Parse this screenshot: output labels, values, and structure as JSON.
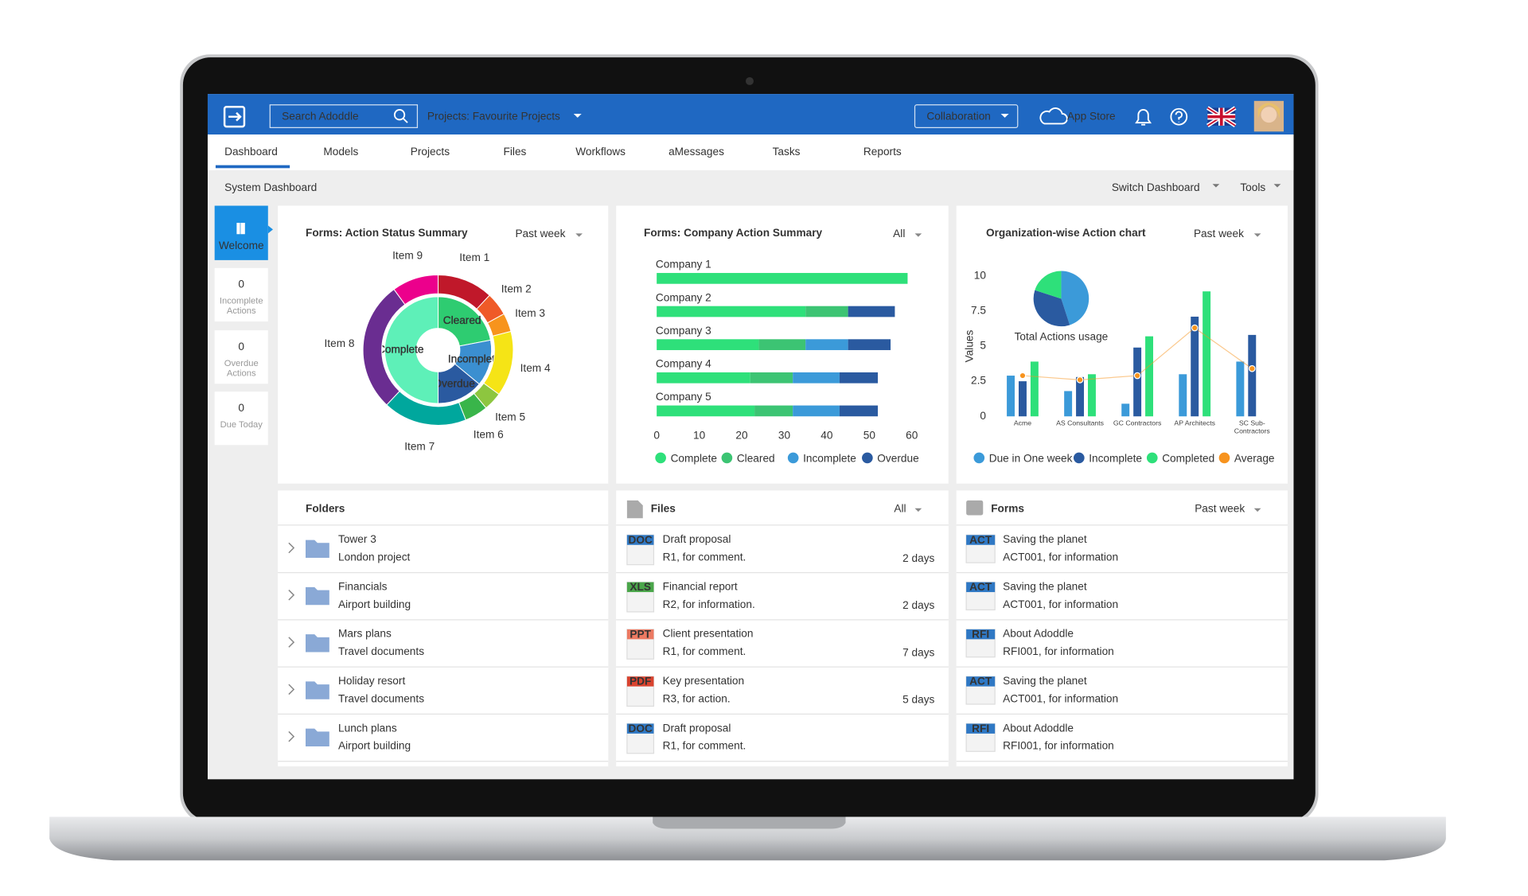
{
  "header": {
    "search_placeholder": "Search Adoddle",
    "projects": "Projects: Favourite Projects",
    "collaboration": "Collaboration",
    "app_store": "App Store"
  },
  "nav": [
    "Dashboard",
    "Models",
    "Projects",
    "Files",
    "Workflows",
    "aMessages",
    "Tasks",
    "Reports"
  ],
  "toolbar": {
    "title": "System Dashboard",
    "switch_dashboard": "Switch Dashboard",
    "tools": "Tools"
  },
  "sidebar": {
    "welcome": "Welcome",
    "stats": [
      {
        "value": 0,
        "label": "Incomplete Actions"
      },
      {
        "value": 0,
        "label": "Overdue Actions"
      },
      {
        "value": 0,
        "label": "Due Today"
      }
    ]
  },
  "chart_data": [
    {
      "type": "sunburst",
      "title": "Forms: Action Status Summary",
      "filter": "Past week",
      "inner": {
        "categories": [
          "Cleared",
          "Incomplete",
          "Overdue",
          "Complete"
        ],
        "values": [
          22,
          14,
          14,
          50
        ],
        "colors": [
          "#2ecc71",
          "#3b8fd0",
          "#2a5aa0",
          "#5ef0b8"
        ]
      },
      "outer": {
        "categories": [
          "Item 1",
          "Item 2",
          "Item 3",
          "Item 4",
          "Item 5",
          "Item 6",
          "Item 7",
          "Item 8",
          "Item 9"
        ],
        "values": [
          12,
          5,
          4,
          14,
          4,
          5,
          18,
          28,
          10
        ],
        "colors": [
          "#c0182a",
          "#ef5a28",
          "#f7941d",
          "#f5e416",
          "#8dc63f",
          "#39b54a",
          "#00a79d",
          "#6a2d91",
          "#ec008c"
        ]
      }
    },
    {
      "type": "stacked_bar_horizontal",
      "title": "Forms: Company Action Summary",
      "filter": "All",
      "categories": [
        "Company 1",
        "Company 2",
        "Company 3",
        "Company 4",
        "Company 5"
      ],
      "series": [
        {
          "name": "Complete",
          "color": "#2ee07a",
          "values": [
            59,
            35,
            24,
            22,
            23
          ]
        },
        {
          "name": "Cleared",
          "color": "#3cc473",
          "values": [
            0,
            10,
            11,
            10,
            9
          ]
        },
        {
          "name": "Incomplete",
          "color": "#3b9ad9",
          "values": [
            0,
            0,
            10,
            11,
            11
          ]
        },
        {
          "name": "Overdue",
          "color": "#2a5aa0",
          "values": [
            0,
            11,
            10,
            9,
            9
          ]
        }
      ],
      "xlim": [
        0,
        60
      ],
      "xticks": [
        0,
        10,
        20,
        30,
        40,
        50,
        60
      ]
    },
    {
      "type": "bar_line",
      "title": "Organization-wise Action chart",
      "filter": "Past week",
      "y_label": "Values",
      "categories": [
        "Acme",
        "AS Consultants",
        "GC Contractors",
        "AP Architects",
        "SC Sub-Contractors"
      ],
      "series": [
        {
          "name": "Due in One week",
          "type": "bar",
          "color": "#3b9ad9",
          "values": [
            2.9,
            1.8,
            0.9,
            3.0,
            3.9
          ]
        },
        {
          "name": "Incomplete",
          "type": "bar",
          "color": "#2a5aa0",
          "values": [
            2.5,
            2.8,
            4.9,
            7.1,
            5.8
          ]
        },
        {
          "name": "Completed",
          "type": "bar",
          "color": "#2ee07a",
          "values": [
            3.9,
            3.0,
            5.7,
            8.9,
            null
          ]
        },
        {
          "name": "Average",
          "type": "line",
          "color": "#f7931e",
          "values": [
            2.9,
            2.6,
            2.9,
            6.3,
            3.4
          ]
        }
      ],
      "ylim": [
        0,
        10
      ],
      "yticks": [
        0,
        2.5,
        5,
        7.5,
        10
      ],
      "inset_pie": {
        "title": "Total Actions usage",
        "values": [
          45,
          35,
          20
        ],
        "colors": [
          "#3b9ad9",
          "#2a5aa0",
          "#2ee07a"
        ]
      }
    }
  ],
  "folders": {
    "title": "Folders",
    "items": [
      {
        "name": "Tower 3",
        "detail": "London project"
      },
      {
        "name": "Financials",
        "detail": "Airport building"
      },
      {
        "name": "Mars plans",
        "detail": "Travel documents"
      },
      {
        "name": "Holiday resort",
        "detail": "Travel documents"
      },
      {
        "name": "Lunch plans",
        "detail": "Airport building"
      }
    ]
  },
  "files": {
    "title": "Files",
    "filter": "All",
    "items": [
      {
        "tag": "DOC",
        "name": "Draft proposal",
        "detail": "R1, for comment.",
        "age": "2 days"
      },
      {
        "tag": "XLS",
        "name": "Financial report",
        "detail": "R2, for information.",
        "age": "2 days"
      },
      {
        "tag": "PPT",
        "name": "Client presentation",
        "detail": "R1, for comment.",
        "age": "7 days"
      },
      {
        "tag": "PDF",
        "name": "Key presentation",
        "detail": "R3, for action.",
        "age": "5 days"
      },
      {
        "tag": "DOC",
        "name": "Draft proposal",
        "detail": "R1, for comment."
      }
    ]
  },
  "forms": {
    "title": "Forms",
    "filter": "Past week",
    "items": [
      {
        "tag": "ACT",
        "name": "Saving the planet",
        "detail": "ACT001, for information"
      },
      {
        "tag": "ACT",
        "name": "Saving the planet",
        "detail": "ACT001, for information"
      },
      {
        "tag": "RFI",
        "name": "About Adoddle",
        "detail": "RFI001, for information"
      },
      {
        "tag": "ACT",
        "name": "Saving the planet",
        "detail": "ACT001, for information"
      },
      {
        "tag": "RFI",
        "name": "About Adoddle",
        "detail": "RFI001, for information"
      }
    ]
  }
}
